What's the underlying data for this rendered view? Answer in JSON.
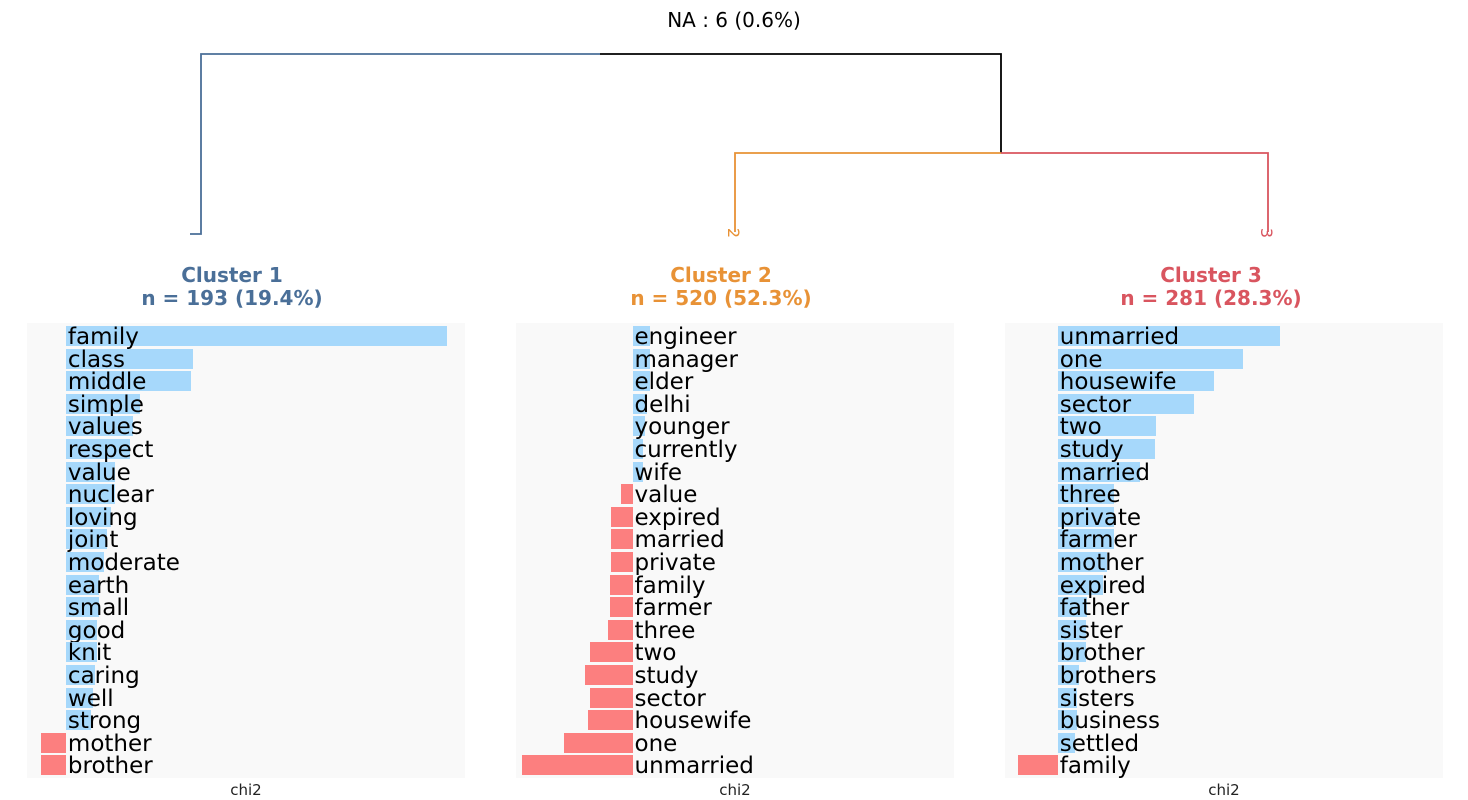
{
  "header": {
    "na_label": "NA : 6 (0.6%)"
  },
  "colors": {
    "cluster_1": "#4a6f98",
    "cluster_2": "#e89236",
    "cluster_3": "#d9555f",
    "positive_bar": "#a6d8fb",
    "negative_bar": "#fc7f7f",
    "panel_background": "#f9f9f9",
    "tree_root": "#000000"
  },
  "clusters": [
    {
      "title": "Cluster 1",
      "subtitle": "n = 193 (19.4%)",
      "leaf_label": "1"
    },
    {
      "title": "Cluster 2",
      "subtitle": "n = 520 (52.3%)",
      "leaf_label": "2"
    },
    {
      "title": "Cluster 3",
      "subtitle": "n = 281 (28.3%)",
      "leaf_label": "3"
    }
  ],
  "chart_data": [
    {
      "type": "bar",
      "orientation": "horizontal",
      "panel": "Cluster 1",
      "xlabel": "chi2",
      "categories": [
        "family",
        "class",
        "middle",
        "simple",
        "values",
        "respect",
        "value",
        "nuclear",
        "loving",
        "joint",
        "moderate",
        "earth",
        "small",
        "good",
        "knit",
        "caring",
        "well",
        "strong",
        "mother",
        "brother"
      ],
      "values": [
        78.3,
        26.2,
        25.6,
        15.2,
        13.7,
        13.2,
        10.0,
        10.0,
        9.3,
        8.5,
        7.8,
        6.7,
        6.7,
        6.3,
        6.3,
        5.9,
        5.6,
        5.2,
        -5.2,
        -5.2
      ],
      "xlim": [
        -8,
        82
      ]
    },
    {
      "type": "bar",
      "orientation": "horizontal",
      "panel": "Cluster 2",
      "xlabel": "chi2",
      "categories": [
        "engineer",
        "manager",
        "elder",
        "delhi",
        "younger",
        "currently",
        "wife",
        "value",
        "expired",
        "married",
        "private",
        "family",
        "farmer",
        "three",
        "two",
        "study",
        "sector",
        "housewife",
        "one",
        "unmarried"
      ],
      "values": [
        4.4,
        4.4,
        4.3,
        3.5,
        3.0,
        2.6,
        2.5,
        -2.8,
        -5.3,
        -5.4,
        -5.4,
        -5.6,
        -5.7,
        -6.2,
        -10.6,
        -11.9,
        -10.5,
        -11.2,
        -17.1,
        -27.4
      ],
      "xlim": [
        -29,
        80
      ]
    },
    {
      "type": "bar",
      "orientation": "horizontal",
      "panel": "Cluster 3",
      "xlabel": "chi2",
      "categories": [
        "unmarried",
        "one",
        "housewife",
        "sector",
        "two",
        "study",
        "married",
        "three",
        "private",
        "farmer",
        "mother",
        "expired",
        "father",
        "sister",
        "brother",
        "brothers",
        "sisters",
        "business",
        "settled",
        "family"
      ],
      "values": [
        42.2,
        35.1,
        29.7,
        25.9,
        18.7,
        18.5,
        15.6,
        10.7,
        10.7,
        10.7,
        9.3,
        8.5,
        5.6,
        5.4,
        5.4,
        4.0,
        3.6,
        3.6,
        3.2,
        -7.6
      ],
      "xlim": [
        -10,
        73
      ]
    }
  ]
}
